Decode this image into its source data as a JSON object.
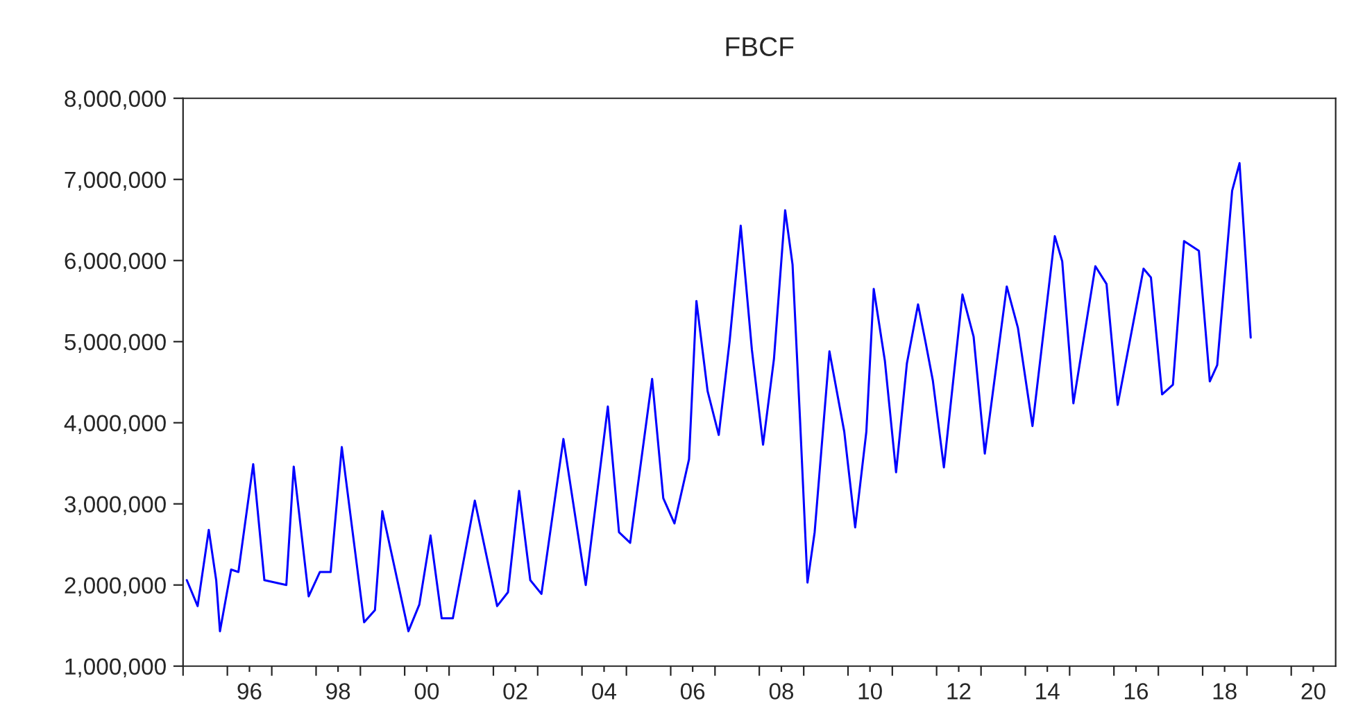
{
  "chart_data": {
    "type": "line",
    "title": "FBCF",
    "x": [
      "1995-02",
      "1995-05",
      "1995-08",
      "1995-10",
      "1995-11",
      "1996-02",
      "1996-04",
      "1996-08",
      "1996-11",
      "1997-05",
      "1997-07",
      "1997-11",
      "1998-02",
      "1998-05",
      "1998-08",
      "1999-02",
      "1999-05",
      "1999-07",
      "2000-02",
      "2000-05",
      "2000-08",
      "2000-11",
      "2001-02",
      "2001-08",
      "2002-02",
      "2002-05",
      "2002-08",
      "2002-11",
      "2003-02",
      "2003-08",
      "2004-02",
      "2004-08",
      "2004-11",
      "2005-02",
      "2005-08",
      "2005-11",
      "2006-02",
      "2006-06",
      "2006-08",
      "2006-11",
      "2007-02",
      "2007-05",
      "2007-08",
      "2007-11",
      "2008-02",
      "2008-05",
      "2008-08",
      "2008-10",
      "2008-12",
      "2009-02",
      "2009-04",
      "2009-08",
      "2009-12",
      "2010-03",
      "2010-06",
      "2010-08",
      "2010-11",
      "2011-02",
      "2011-05",
      "2011-08",
      "2011-10",
      "2011-12",
      "2012-03",
      "2012-08",
      "2012-11",
      "2013-02",
      "2013-08",
      "2013-11",
      "2014-03",
      "2014-09",
      "2014-11",
      "2015-02",
      "2015-08",
      "2015-11",
      "2016-02",
      "2016-09",
      "2016-11",
      "2017-02",
      "2017-05",
      "2017-08",
      "2017-12",
      "2018-03",
      "2018-05",
      "2018-09",
      "2018-11",
      "2019-02"
    ],
    "series": [
      {
        "color": "#0000ff",
        "values": [
          2060000,
          1740000,
          2680000,
          2060000,
          1430000,
          2190000,
          2160000,
          3490000,
          2060000,
          2000000,
          3460000,
          1860000,
          2160000,
          2160000,
          3700000,
          1540000,
          1690000,
          2910000,
          1430000,
          1760000,
          2610000,
          1590000,
          1590000,
          3040000,
          1740000,
          1910000,
          3160000,
          2060000,
          1890000,
          3800000,
          2000000,
          4200000,
          2650000,
          2520000,
          4540000,
          3070000,
          2760000,
          3550000,
          5500000,
          4390000,
          3850000,
          5000000,
          6430000,
          4900000,
          3730000,
          4790000,
          6620000,
          5950000,
          4060000,
          2030000,
          2650000,
          4880000,
          3890000,
          2710000,
          3890000,
          5650000,
          4760000,
          3390000,
          4730000,
          5460000,
          5000000,
          4520000,
          3450000,
          5580000,
          5060000,
          3620000,
          5680000,
          5170000,
          3960000,
          6300000,
          5990000,
          4240000,
          5930000,
          5710000,
          4220000,
          5900000,
          5790000,
          4350000,
          4470000,
          6240000,
          6120000,
          4510000,
          4710000,
          6860000,
          7200000,
          5050000
        ]
      }
    ],
    "xlim": [
      "1995-01",
      "2021-01"
    ],
    "xticks": [
      {
        "value": "1995",
        "label": null
      },
      {
        "value": "1996",
        "label": null
      },
      {
        "value": "1996-07",
        "label": "96"
      },
      {
        "value": "1997",
        "label": null
      },
      {
        "value": "1998",
        "label": null
      },
      {
        "value": "1998-07",
        "label": "98"
      },
      {
        "value": "1999",
        "label": null
      },
      {
        "value": "2000",
        "label": null
      },
      {
        "value": "2000-07",
        "label": "00"
      },
      {
        "value": "2001",
        "label": null
      },
      {
        "value": "2002",
        "label": null
      },
      {
        "value": "2002-07",
        "label": "02"
      },
      {
        "value": "2003",
        "label": null
      },
      {
        "value": "2004",
        "label": null
      },
      {
        "value": "2004-07",
        "label": "04"
      },
      {
        "value": "2005",
        "label": null
      },
      {
        "value": "2006",
        "label": null
      },
      {
        "value": "2006-07",
        "label": "06"
      },
      {
        "value": "2007",
        "label": null
      },
      {
        "value": "2008",
        "label": null
      },
      {
        "value": "2008-07",
        "label": "08"
      },
      {
        "value": "2009",
        "label": null
      },
      {
        "value": "2010",
        "label": null
      },
      {
        "value": "2010-07",
        "label": "10"
      },
      {
        "value": "2011",
        "label": null
      },
      {
        "value": "2012",
        "label": null
      },
      {
        "value": "2012-07",
        "label": "12"
      },
      {
        "value": "2013",
        "label": null
      },
      {
        "value": "2014",
        "label": null
      },
      {
        "value": "2014-07",
        "label": "14"
      },
      {
        "value": "2015",
        "label": null
      },
      {
        "value": "2016",
        "label": null
      },
      {
        "value": "2016-07",
        "label": "16"
      },
      {
        "value": "2017",
        "label": null
      },
      {
        "value": "2018",
        "label": null
      },
      {
        "value": "2018-07",
        "label": "18"
      },
      {
        "value": "2019",
        "label": null
      },
      {
        "value": "2020",
        "label": null
      },
      {
        "value": "2020-07",
        "label": "20"
      }
    ],
    "ylim": [
      1000000,
      8000000
    ],
    "yticks": [
      {
        "value": 1000000,
        "label": "1,000,000"
      },
      {
        "value": 2000000,
        "label": "2,000,000"
      },
      {
        "value": 3000000,
        "label": "3,000,000"
      },
      {
        "value": 4000000,
        "label": "4,000,000"
      },
      {
        "value": 5000000,
        "label": "5,000,000"
      },
      {
        "value": 6000000,
        "label": "6,000,000"
      },
      {
        "value": 7000000,
        "label": "7,000,000"
      },
      {
        "value": 8000000,
        "label": "8,000,000"
      }
    ],
    "grid": false,
    "legend": false,
    "marker": "none",
    "line_style": "solid"
  }
}
